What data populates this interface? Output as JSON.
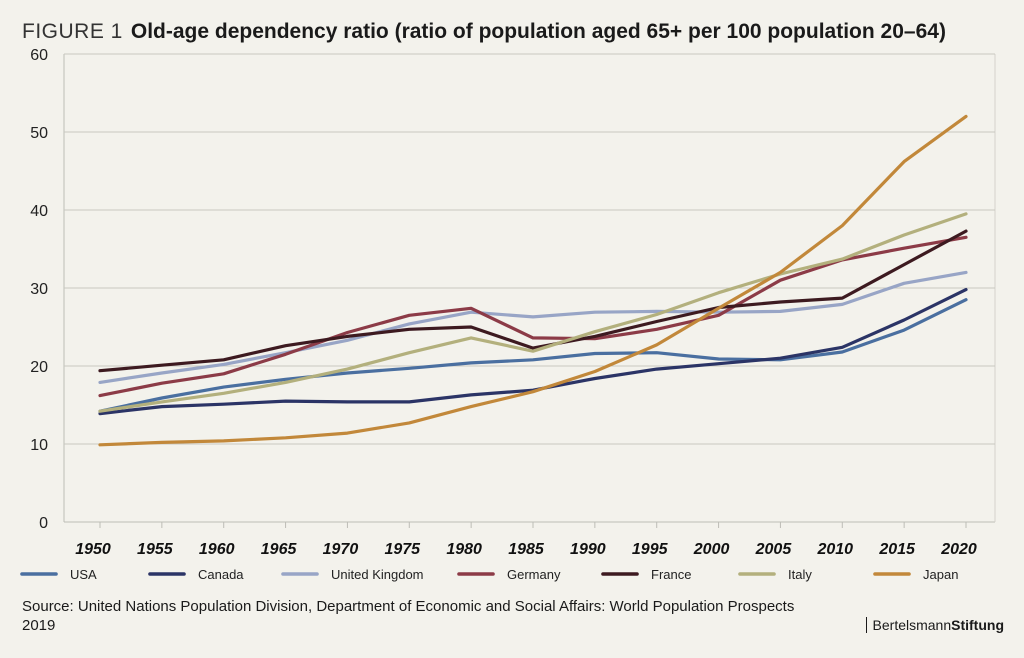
{
  "figure_label": "FIGURE 1",
  "chart_data": {
    "type": "line",
    "title": "Old-age dependency ratio (ratio of population aged 65+ per 100 population 20–64)",
    "xlabel": "",
    "ylabel": "",
    "ylim": [
      0,
      60
    ],
    "yticks": [
      "0",
      "10",
      "20",
      "30",
      "40",
      "50",
      "60"
    ],
    "categories": [
      "1950",
      "1955",
      "1960",
      "1965",
      "1970",
      "1975",
      "1980",
      "1985",
      "1990",
      "1995",
      "2000",
      "2005",
      "2010",
      "2015",
      "2020"
    ],
    "grid": "horizontal",
    "legend_position": "bottom",
    "series": [
      {
        "name": "USA",
        "color": "#4a6fa0",
        "values": [
          14.2,
          15.9,
          17.3,
          18.3,
          19.1,
          19.7,
          20.4,
          20.8,
          21.6,
          21.7,
          20.9,
          20.8,
          21.8,
          24.6,
          28.5
        ]
      },
      {
        "name": "Canada",
        "color": "#2b3466",
        "values": [
          13.9,
          14.8,
          15.1,
          15.5,
          15.4,
          15.4,
          16.3,
          16.9,
          18.4,
          19.6,
          20.3,
          21.0,
          22.4,
          25.9,
          29.8
        ]
      },
      {
        "name": "United Kingdom",
        "color": "#98a5c6",
        "values": [
          17.9,
          19.1,
          20.2,
          21.7,
          23.3,
          25.4,
          26.9,
          26.3,
          26.9,
          27.0,
          26.9,
          27.0,
          27.9,
          30.6,
          32.0
        ]
      },
      {
        "name": "Germany",
        "color": "#8c3b47",
        "values": [
          16.2,
          17.8,
          19.0,
          21.5,
          24.3,
          26.5,
          27.4,
          23.6,
          23.5,
          24.7,
          26.5,
          31.0,
          33.6,
          35.1,
          36.5
        ]
      },
      {
        "name": "France",
        "color": "#3d1a20",
        "values": [
          19.4,
          20.1,
          20.8,
          22.6,
          23.8,
          24.7,
          25.0,
          22.3,
          23.8,
          25.7,
          27.5,
          28.2,
          28.7,
          33.0,
          37.3
        ]
      },
      {
        "name": "Italy",
        "color": "#b3b07d",
        "values": [
          14.2,
          15.4,
          16.5,
          17.9,
          19.6,
          21.7,
          23.6,
          21.9,
          24.4,
          26.6,
          29.4,
          31.8,
          33.7,
          36.8,
          39.5
        ]
      },
      {
        "name": "Japan",
        "color": "#c2883a",
        "values": [
          9.9,
          10.2,
          10.4,
          10.8,
          11.4,
          12.7,
          14.8,
          16.7,
          19.3,
          22.7,
          27.4,
          32.0,
          38.0,
          46.2,
          52.0
        ]
      }
    ]
  },
  "source": "Source: United Nations Population Division, Department of Economic and Social Affairs: World Population Prospects 2019",
  "brand": {
    "part1": "Bertelsmann",
    "part2": "Stiftung"
  }
}
